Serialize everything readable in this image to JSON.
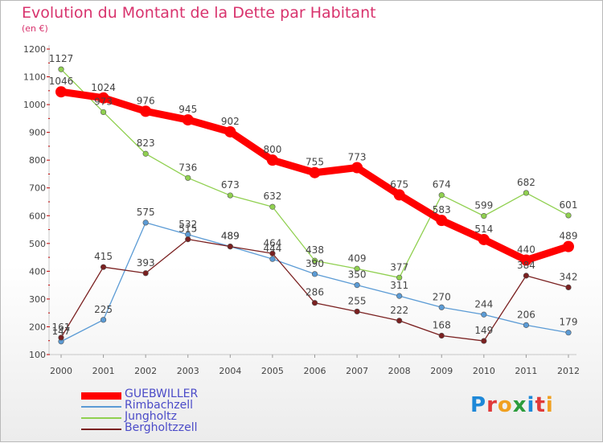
{
  "title": "Evolution du Montant de la Dette par Habitant",
  "subtitle": "(en €)",
  "brand": {
    "letters": [
      "P",
      "r",
      "o",
      "x",
      "i",
      "t",
      "i"
    ],
    "colors": [
      "#1e88d8",
      "#e03a3a",
      "#f0a020",
      "#2c9c3c",
      "#1e88d8",
      "#e03a3a",
      "#f0a020"
    ]
  },
  "chart_data": {
    "type": "line",
    "title": "Evolution du Montant de la Dette par Habitant",
    "subtitle": "(en €)",
    "x": [
      "2000",
      "2001",
      "2002",
      "2003",
      "2004",
      "2005",
      "2006",
      "2007",
      "2008",
      "2009",
      "2010",
      "2011",
      "2012"
    ],
    "ylim": [
      100,
      1200
    ],
    "yticks": [
      "100",
      "200",
      "300",
      "400",
      "500",
      "600",
      "700",
      "800",
      "900",
      "1000",
      "1100",
      "1200"
    ],
    "grid": false,
    "legend": "bottom-left",
    "series": [
      {
        "name": "GUEBWILLER",
        "color": "#ff0000",
        "values": [
          1046,
          1024,
          976,
          945,
          902,
          800,
          755,
          773,
          675,
          583,
          514,
          440,
          489
        ]
      },
      {
        "name": "Rimbachzell",
        "color": "#5b9bd5",
        "values": [
          147,
          225,
          575,
          532,
          489,
          444,
          390,
          350,
          311,
          270,
          244,
          206,
          179
        ]
      },
      {
        "name": "Jungholtz",
        "color": "#90d050",
        "values": [
          1127,
          973,
          823,
          736,
          673,
          632,
          438,
          409,
          377,
          674,
          599,
          682,
          601
        ]
      },
      {
        "name": "Bergholtzzell",
        "color": "#7a2020",
        "values": [
          161,
          415,
          393,
          515,
          489,
          464,
          286,
          255,
          222,
          168,
          149,
          384,
          342
        ]
      }
    ]
  }
}
